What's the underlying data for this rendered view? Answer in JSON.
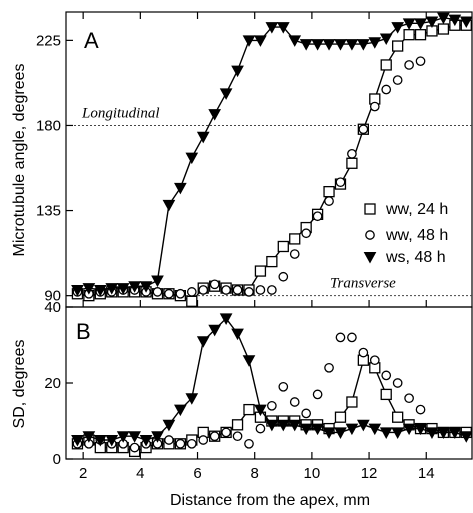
{
  "chart_data": [
    {
      "panel": "A",
      "type": "line",
      "xlabel": "",
      "ylabel": "Microtubule angle, degrees",
      "xlim": [
        1.4,
        15.6
      ],
      "ylim": [
        84,
        240
      ],
      "xticks": [
        2,
        4,
        6,
        8,
        10,
        12,
        14
      ],
      "yticks": [
        90,
        135,
        180,
        225
      ],
      "reference_lines": [
        {
          "y": 180,
          "label": "Longitudinal"
        },
        {
          "y": 90,
          "label": "Transverse"
        }
      ],
      "legend": {
        "placement": "right"
      },
      "series": [
        {
          "name": "ww, 24 h",
          "marker": "square",
          "connected": true,
          "x": [
            1.8,
            2.2,
            2.6,
            3.0,
            3.4,
            3.8,
            4.2,
            4.6,
            5.0,
            5.4,
            5.8,
            6.2,
            6.6,
            7.0,
            7.4,
            7.8,
            8.2,
            8.6,
            9.0,
            9.4,
            9.8,
            10.2,
            10.6,
            11.0,
            11.4,
            11.8,
            12.2,
            12.6,
            13.0,
            13.4,
            13.8,
            14.2,
            14.6,
            15.0,
            15.4
          ],
          "y": [
            91,
            90,
            91,
            92,
            92,
            92,
            92,
            91,
            91,
            90,
            87,
            94,
            95,
            94,
            93,
            93,
            103,
            108,
            116,
            120,
            126,
            133,
            145,
            149,
            160,
            178,
            194,
            212,
            222,
            228,
            228,
            230,
            231,
            233,
            233
          ]
        },
        {
          "name": "ww, 48 h",
          "marker": "circle",
          "connected": false,
          "x": [
            1.8,
            2.2,
            2.6,
            3.0,
            3.4,
            3.8,
            4.2,
            4.6,
            5.0,
            5.4,
            5.8,
            6.2,
            6.6,
            7.0,
            7.4,
            7.8,
            8.2,
            8.6,
            9.0,
            9.4,
            9.8,
            10.2,
            10.6,
            11.0,
            11.4,
            11.8,
            12.2,
            12.6,
            13.0,
            13.4,
            13.8
          ],
          "y": [
            92,
            91,
            92,
            92,
            93,
            93,
            92,
            92,
            91,
            91,
            92,
            93,
            96,
            93,
            93,
            92,
            93,
            93,
            100,
            112,
            123,
            132,
            140,
            150,
            165,
            178,
            190,
            199,
            204,
            212,
            214
          ]
        },
        {
          "name": "ws, 48 h",
          "marker": "triangle-down",
          "connected": true,
          "x": [
            1.8,
            2.2,
            2.6,
            3.0,
            3.4,
            3.8,
            4.2,
            4.6,
            5.0,
            5.4,
            5.8,
            6.2,
            6.6,
            7.0,
            7.4,
            7.8,
            8.2,
            8.6,
            9.0,
            9.4,
            9.8,
            10.2,
            10.6,
            11.0,
            11.4,
            11.8,
            12.2,
            12.6,
            13.0,
            13.4,
            13.8,
            14.2,
            14.6,
            15.0,
            15.4
          ],
          "y": [
            93,
            94,
            93,
            94,
            94,
            95,
            95,
            98,
            138,
            147,
            163,
            174,
            186,
            197,
            209,
            225,
            225,
            232,
            232,
            225,
            223,
            223,
            223,
            223,
            223,
            223,
            224,
            226,
            232,
            234,
            234,
            235,
            237,
            236,
            235
          ]
        }
      ]
    },
    {
      "panel": "B",
      "type": "line",
      "xlabel": "Distance from the apex, mm",
      "ylabel": "SD, degrees",
      "xlim": [
        1.4,
        15.6
      ],
      "ylim": [
        0,
        40
      ],
      "xticks": [
        2,
        4,
        6,
        8,
        10,
        12,
        14
      ],
      "yticks": [
        0,
        20,
        40
      ],
      "series": [
        {
          "name": "ww, 24 h",
          "marker": "square",
          "connected": true,
          "x": [
            1.8,
            2.2,
            2.6,
            3.0,
            3.4,
            3.8,
            4.2,
            4.6,
            5.0,
            5.4,
            5.8,
            6.2,
            6.6,
            7.0,
            7.4,
            7.8,
            8.2,
            8.6,
            9.0,
            9.4,
            9.8,
            10.2,
            10.6,
            11.0,
            11.4,
            11.8,
            12.2,
            12.6,
            13.0,
            13.4,
            13.8,
            14.2,
            14.6,
            15.0,
            15.4
          ],
          "y": [
            4,
            5,
            3,
            3,
            3,
            2,
            3,
            4,
            4,
            4,
            5,
            7,
            6,
            7,
            9,
            13,
            11,
            10,
            10,
            10,
            9,
            9,
            8,
            11,
            15,
            26,
            24,
            17,
            11,
            9,
            8,
            8,
            7,
            7,
            7
          ]
        },
        {
          "name": "ww, 48 h",
          "marker": "circle",
          "connected": false,
          "x": [
            1.8,
            2.2,
            2.6,
            3.0,
            3.4,
            3.8,
            4.2,
            4.6,
            5.0,
            5.4,
            5.8,
            6.2,
            6.6,
            7.0,
            7.4,
            7.8,
            8.2,
            8.6,
            9.0,
            9.4,
            9.8,
            10.2,
            10.6,
            11.0,
            11.4,
            11.8,
            12.2,
            12.6,
            13.0,
            13.4,
            13.8
          ],
          "y": [
            4,
            4,
            5,
            4,
            4,
            3,
            4,
            4,
            5,
            4,
            4,
            5,
            6,
            7,
            6,
            4,
            8,
            14,
            19,
            15,
            12,
            17,
            24,
            32,
            32,
            28,
            26,
            22,
            20,
            16,
            13
          ]
        },
        {
          "name": "ws, 48 h",
          "marker": "triangle-down",
          "connected": true,
          "x": [
            1.8,
            2.2,
            2.6,
            3.0,
            3.4,
            3.8,
            4.2,
            4.6,
            5.0,
            5.4,
            5.8,
            6.2,
            6.6,
            7.0,
            7.4,
            7.8,
            8.2,
            8.6,
            9.0,
            9.4,
            9.8,
            10.2,
            10.6,
            11.0,
            11.4,
            11.8,
            12.2,
            12.6,
            13.0,
            13.4,
            13.8,
            14.2,
            14.6,
            15.0,
            15.4
          ],
          "y": [
            5,
            6,
            5,
            5,
            6,
            6,
            5,
            6,
            9,
            13,
            16,
            31,
            34,
            37,
            33,
            26,
            13,
            9,
            9,
            9,
            8,
            8,
            7,
            7,
            8,
            9,
            8,
            7,
            7,
            8,
            8,
            7,
            7,
            7,
            6
          ]
        }
      ]
    }
  ]
}
